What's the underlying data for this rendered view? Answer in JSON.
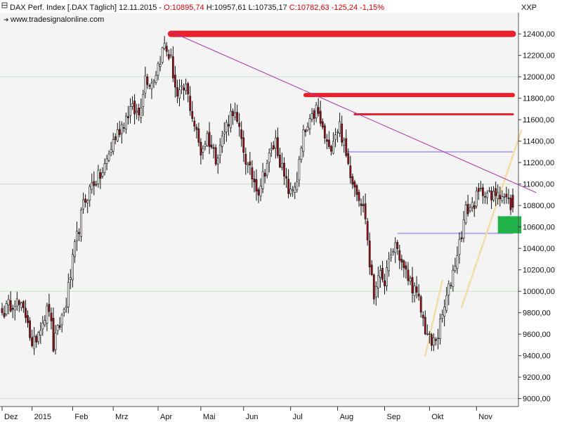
{
  "header": {
    "instrument": "DAX Perf. Index [.DAX",
    "period": "Täglich]",
    "date": "12.11.2015",
    "open": "O:10895,74",
    "high": "H:10957,61",
    "low": "L:10735,17",
    "close": "C:10782,63",
    "change": "-125,24",
    "change_pct": "-1,15%",
    "watermark": "www.tradesignalonline.com",
    "corner_label": "XXP"
  },
  "colors": {
    "panel_bg": "#f4f4f4",
    "grid": "#c9dcc9",
    "candle_up": "#ffffff",
    "candle_down": "#9b0e16",
    "wick": "#111111",
    "resistance": "#e8212c",
    "trend": "#aa33aa",
    "support": "#b5a9e6",
    "channel": "#f3dca6",
    "zone": "#21b34a",
    "negative_text": "#cc0000"
  },
  "chart_data": {
    "type": "candlestick",
    "title": "DAX Perf. Index [.DAX Täglich]",
    "y_axis_side": "right",
    "ylim": [
      8950,
      12600
    ],
    "y_ticks": [
      "12400,00",
      "12200,00",
      "12000,00",
      "11800,00",
      "11600,00",
      "11400,00",
      "11200,00",
      "11000,00",
      "10800,00",
      "10600,00",
      "10400,00",
      "10200,00",
      "10000,00",
      "9800,00",
      "9600,00",
      "9400,00",
      "9200,00",
      "9000,00"
    ],
    "y_tick_values": [
      12400,
      12200,
      12000,
      11800,
      11600,
      11400,
      11200,
      11000,
      10800,
      10600,
      10400,
      10200,
      10000,
      9800,
      9600,
      9400,
      9200,
      9000
    ],
    "grid": "horizontal at 9000, 10000, 11000, 12000",
    "x_months": [
      "Dez",
      "2015",
      "Feb",
      "Mrz",
      "Apr",
      "Mai",
      "Jun",
      "Jul",
      "Aug",
      "Sep",
      "Okt",
      "Nov"
    ],
    "x_month_bar_index": [
      0,
      14,
      33,
      52,
      73,
      93,
      113,
      135,
      157,
      179,
      200,
      222
    ],
    "total_bars": 240,
    "close_anchors": [
      [
        0,
        9800
      ],
      [
        6,
        9920
      ],
      [
        12,
        9750
      ],
      [
        14,
        9450
      ],
      [
        18,
        9700
      ],
      [
        22,
        9850
      ],
      [
        24,
        9480
      ],
      [
        30,
        9900
      ],
      [
        34,
        10400
      ],
      [
        38,
        10800
      ],
      [
        42,
        11000
      ],
      [
        47,
        11100
      ],
      [
        52,
        11400
      ],
      [
        56,
        11550
      ],
      [
        60,
        11700
      ],
      [
        64,
        11650
      ],
      [
        67,
        12000
      ],
      [
        70,
        11950
      ],
      [
        72,
        12050
      ],
      [
        76,
        12300
      ],
      [
        79,
        12150
      ],
      [
        82,
        11800
      ],
      [
        86,
        11900
      ],
      [
        90,
        11550
      ],
      [
        93,
        11300
      ],
      [
        96,
        11450
      ],
      [
        100,
        11250
      ],
      [
        105,
        11550
      ],
      [
        108,
        11700
      ],
      [
        112,
        11400
      ],
      [
        115,
        11150
      ],
      [
        120,
        10950
      ],
      [
        124,
        11200
      ],
      [
        128,
        11400
      ],
      [
        132,
        11050
      ],
      [
        135,
        10900
      ],
      [
        138,
        11050
      ],
      [
        141,
        11450
      ],
      [
        144,
        11550
      ],
      [
        147,
        11700
      ],
      [
        150,
        11500
      ],
      [
        153,
        11300
      ],
      [
        155,
        11450
      ],
      [
        158,
        11550
      ],
      [
        161,
        11250
      ],
      [
        164,
        11050
      ],
      [
        167,
        10900
      ],
      [
        170,
        10700
      ],
      [
        172,
        10250
      ],
      [
        174,
        9950
      ],
      [
        176,
        10200
      ],
      [
        178,
        10050
      ],
      [
        181,
        10250
      ],
      [
        184,
        10450
      ],
      [
        188,
        10200
      ],
      [
        192,
        10050
      ],
      [
        195,
        9900
      ],
      [
        198,
        9650
      ],
      [
        201,
        9500
      ],
      [
        204,
        9600
      ],
      [
        207,
        9850
      ],
      [
        210,
        10100
      ],
      [
        214,
        10450
      ],
      [
        217,
        10750
      ],
      [
        220,
        10800
      ],
      [
        223,
        10900
      ],
      [
        226,
        10950
      ],
      [
        229,
        10850
      ],
      [
        232,
        10950
      ],
      [
        239,
        10783
      ]
    ],
    "last_bar": {
      "open": 10895.74,
      "high": 10957.61,
      "low": 10735.17,
      "close": 10782.63,
      "change": -125.24,
      "change_pct": -1.15
    },
    "annotations": {
      "resistance_lines": [
        {
          "level": 12400,
          "from_bar": 79,
          "to_bar": 239,
          "weight": "heavy"
        },
        {
          "level": 11830,
          "from_bar": 142,
          "to_bar": 239,
          "weight": "medium"
        },
        {
          "level": 11650,
          "from_bar": 165,
          "to_bar": 239,
          "weight": "light"
        }
      ],
      "support_lines": [
        {
          "level": 11300,
          "from_bar": 161,
          "to_bar": 239
        },
        {
          "level": 10540,
          "from_bar": 185,
          "to_bar": 239
        }
      ],
      "downtrend_line": {
        "from": [
          79,
          12420
        ],
        "to": [
          250,
          10920
        ]
      },
      "channel_lines": [
        {
          "from": [
            198,
            9400
          ],
          "to": [
            206,
            10100
          ]
        },
        {
          "from": [
            215,
            9850
          ],
          "to": [
            243,
            11500
          ]
        }
      ],
      "zone": {
        "low": 10540,
        "high": 10700,
        "from_bar": 232,
        "to_bar": 243
      }
    }
  }
}
